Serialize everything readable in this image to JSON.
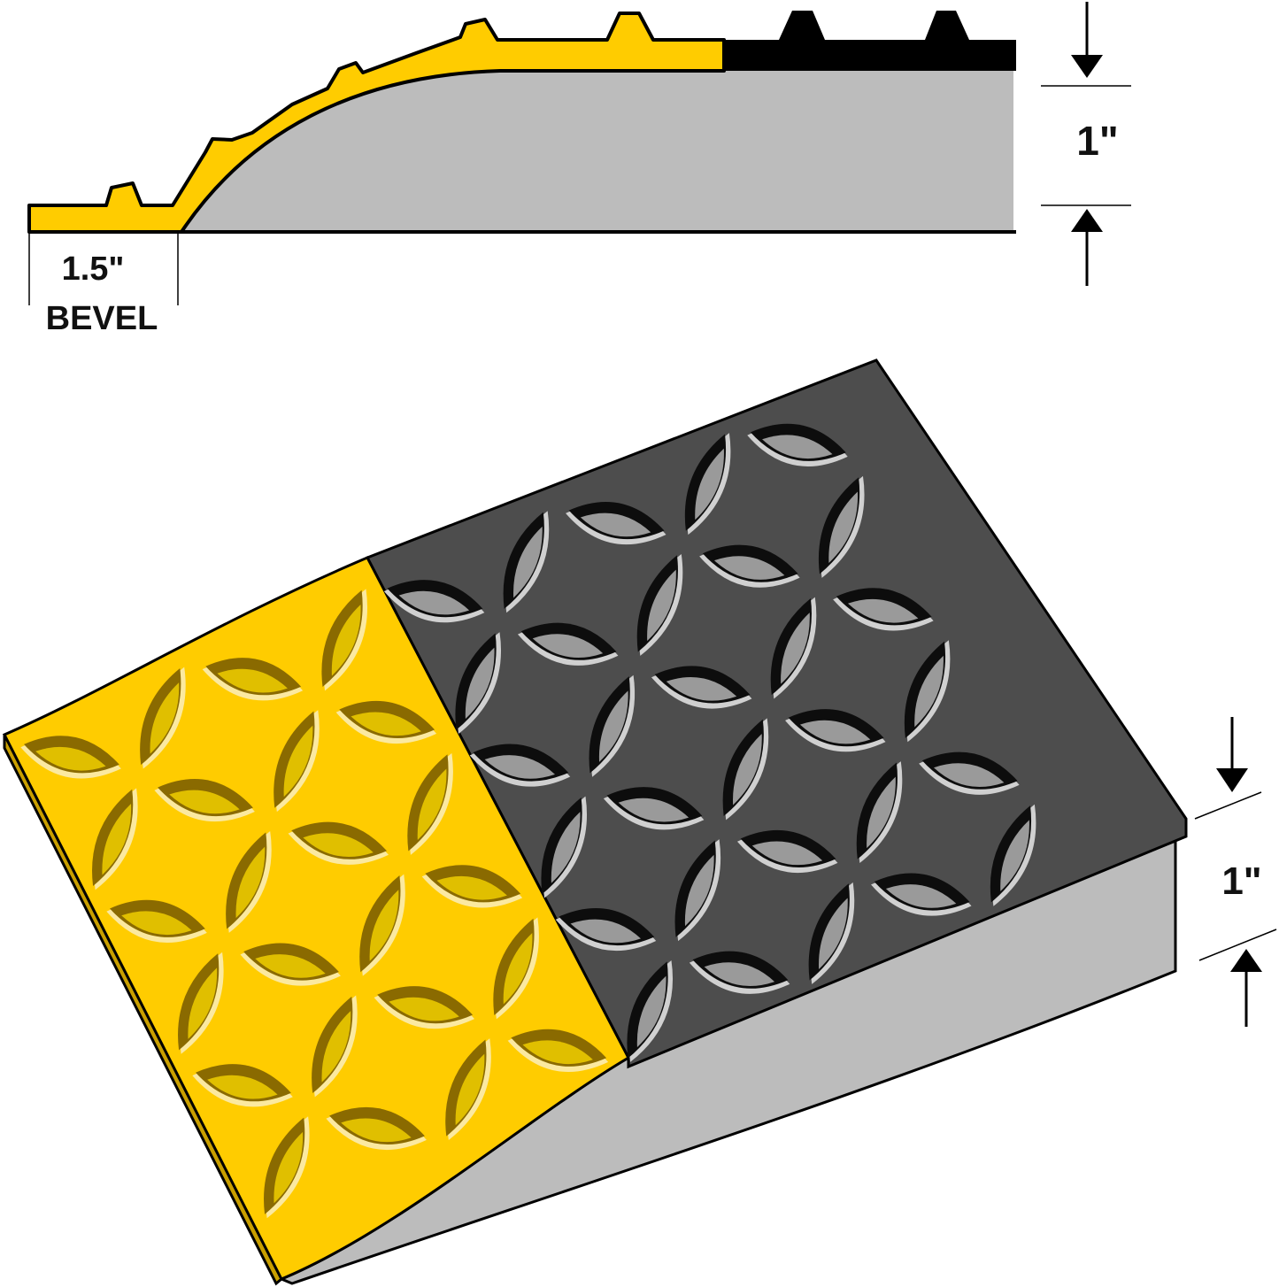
{
  "cross_section": {
    "thickness_label": "1\"",
    "bevel_size_label": "1.5\"",
    "bevel_label": "BEVEL"
  },
  "perspective_view": {
    "thickness_label": "1\""
  },
  "colors": {
    "safety_yellow": "#ffcc00",
    "surface_black": "#4d4d4d",
    "foam_gray": "#bcbcbc",
    "outline": "#000000"
  }
}
